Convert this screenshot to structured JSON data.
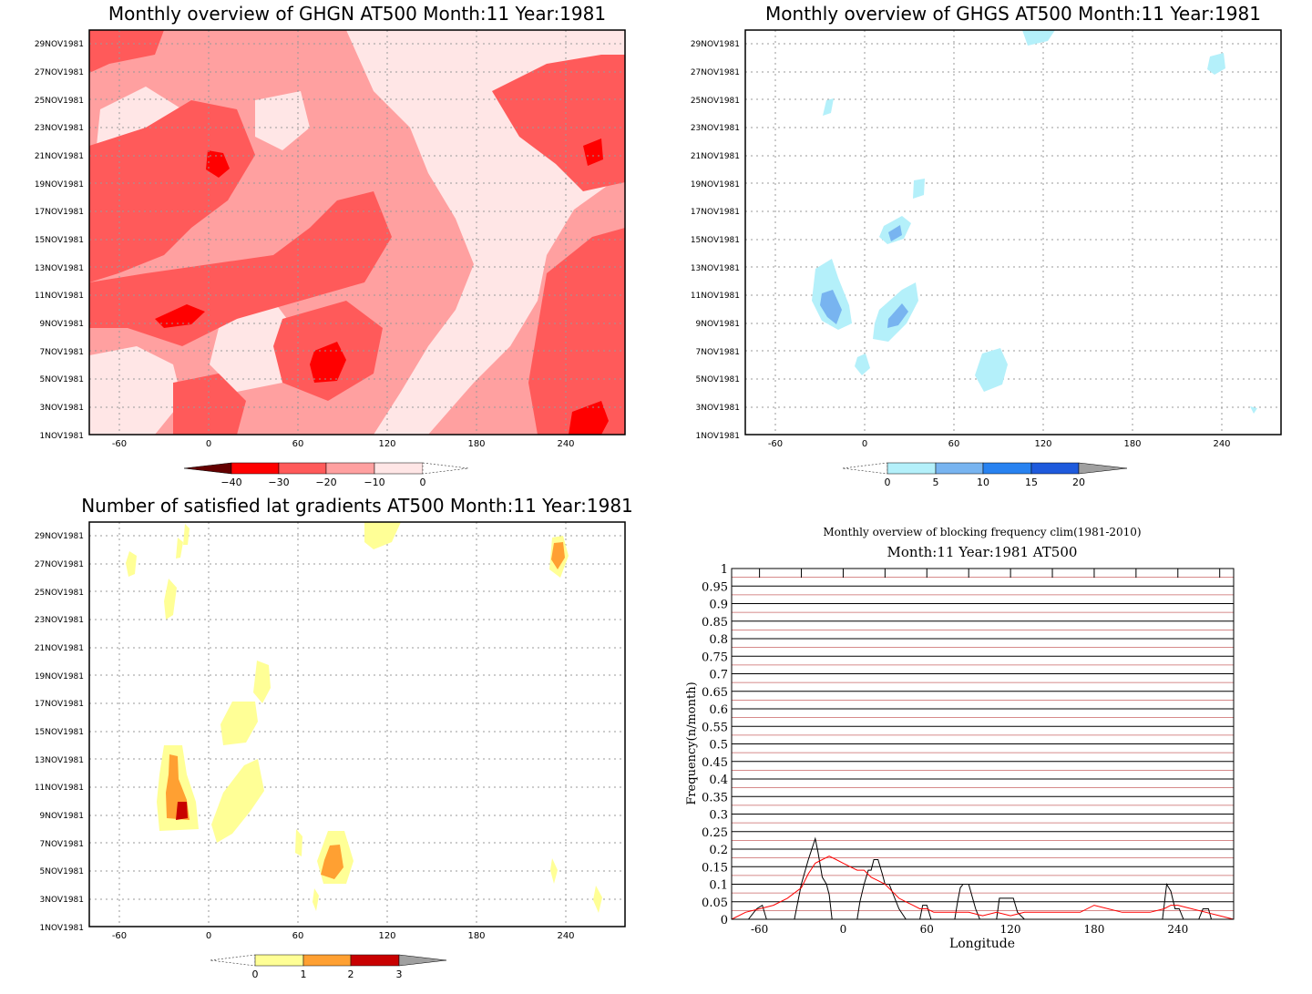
{
  "panels": {
    "ghgn": {
      "title": "Monthly overview of GHGN AT500 Month:11 Year:1981",
      "legend": {
        "labels": [
          "−40",
          "−30",
          "−20",
          "−10",
          "0"
        ],
        "colors": [
          "#b00000",
          "#ff0000",
          "#ff5a5a",
          "#ffa0a0",
          "#ffe6e6"
        ]
      }
    },
    "ghgs": {
      "title": "Monthly overview of GHGS AT500 Month:11 Year:1981",
      "legend": {
        "labels": [
          "0",
          "5",
          "10",
          "15",
          "20"
        ],
        "colors": [
          "#b4f0fa",
          "#78b4f0",
          "#2882f0",
          "#1e5adc",
          "#a0a0a0"
        ]
      }
    },
    "gradients": {
      "title": "Number of satisfied lat gradients AT500 Month:11 Year:1981",
      "legend": {
        "labels": [
          "0",
          "1",
          "2",
          "3"
        ],
        "colors": [
          "#ffff96",
          "#ffa032",
          "#c80000",
          "#a0a0a0"
        ]
      }
    },
    "blocking": {
      "title": "Monthly overview of blocking frequency clim(1981-2010)",
      "subtitle": "Month:11 Year:1981  AT500",
      "xlabel": "Longitude",
      "ylabel": "Frequency(n/month)"
    }
  },
  "date_ticks": [
    "1NOV1981",
    "3NOV1981",
    "5NOV1981",
    "7NOV1981",
    "9NOV1981",
    "11NOV1981",
    "13NOV1981",
    "15NOV1981",
    "17NOV1981",
    "19NOV1981",
    "21NOV1981",
    "23NOV1981",
    "25NOV1981",
    "27NOV1981",
    "29NOV1981"
  ],
  "lon_ticks": [
    "-60",
    "0",
    "60",
    "120",
    "180",
    "240"
  ],
  "freq_ticks": [
    "0",
    "0.05",
    "0.1",
    "0.15",
    "0.2",
    "0.25",
    "0.3",
    "0.35",
    "0.4",
    "0.45",
    "0.5",
    "0.55",
    "0.6",
    "0.65",
    "0.7",
    "0.75",
    "0.8",
    "0.85",
    "0.9",
    "0.95",
    "1"
  ],
  "chart_data": [
    {
      "type": "heatmap",
      "title": "Monthly overview of GHGN AT500 Month:11 Year:1981",
      "x_range": [
        -80,
        280
      ],
      "y_range": [
        "1NOV1981",
        "30NOV1981"
      ],
      "color_levels": [
        -40,
        -30,
        -20,
        -10,
        0
      ],
      "grid": true
    },
    {
      "type": "heatmap",
      "title": "Monthly overview of GHGS AT500 Month:11 Year:1981",
      "x_range": [
        -80,
        280
      ],
      "y_range": [
        "1NOV1981",
        "30NOV1981"
      ],
      "color_levels": [
        0,
        5,
        10,
        15,
        20
      ],
      "grid": true
    },
    {
      "type": "heatmap",
      "title": "Number of satisfied lat gradients AT500 Month:11 Year:1981",
      "x_range": [
        -80,
        280
      ],
      "y_range": [
        "1NOV1981",
        "30NOV1981"
      ],
      "color_levels": [
        0,
        1,
        2,
        3
      ],
      "grid": true
    },
    {
      "type": "line",
      "title": "Monthly overview of blocking frequency clim(1981-2010)",
      "subtitle": "Month:11 Year:1981  AT500",
      "xlabel": "Longitude",
      "ylabel": "Frequency(n/month)",
      "xlim": [
        -80,
        280
      ],
      "ylim": [
        0,
        1
      ],
      "series": [
        {
          "color": "#000000",
          "x": [
            -80,
            -68,
            -62,
            -58,
            -55,
            -35,
            -30,
            -25,
            -20,
            -18,
            -15,
            -12,
            -10,
            -8,
            -3,
            0,
            5,
            10,
            12,
            15,
            18,
            20,
            22,
            25,
            28,
            30,
            33,
            36,
            40,
            45,
            50,
            55,
            57,
            60,
            63,
            65,
            68,
            70,
            80,
            82,
            84,
            86,
            90,
            95,
            98,
            100,
            110,
            112,
            115,
            122,
            125,
            130,
            135,
            140,
            150,
            160,
            170,
            180,
            190,
            200,
            210,
            220,
            229,
            232,
            235,
            238,
            241,
            244,
            250,
            255,
            258,
            262,
            264,
            270,
            280
          ],
          "y": [
            0,
            0,
            0.03,
            0.04,
            0,
            0,
            0.1,
            0.17,
            0.23,
            0.19,
            0.12,
            0.1,
            0.07,
            0,
            0,
            0,
            0,
            0,
            0.05,
            0.1,
            0.14,
            0.14,
            0.17,
            0.17,
            0.13,
            0.1,
            0.1,
            0.07,
            0.03,
            0,
            0,
            0,
            0.04,
            0.04,
            0,
            0,
            0,
            0,
            0,
            0.05,
            0.09,
            0.1,
            0.1,
            0.03,
            0,
            0,
            0,
            0.06,
            0.06,
            0.06,
            0.02,
            0,
            0,
            0,
            0,
            0,
            0,
            0,
            0,
            0,
            0,
            0,
            0,
            0.1,
            0.08,
            0.03,
            0.03,
            0,
            0,
            0,
            0.03,
            0.03,
            0,
            0,
            0
          ]
        },
        {
          "color": "#ff0000",
          "x": [
            -80,
            -70,
            -60,
            -50,
            -40,
            -30,
            -25,
            -20,
            -15,
            -10,
            -5,
            0,
            5,
            10,
            15,
            20,
            25,
            30,
            35,
            40,
            45,
            50,
            55,
            60,
            65,
            70,
            80,
            90,
            100,
            110,
            120,
            130,
            140,
            150,
            160,
            170,
            180,
            190,
            200,
            210,
            220,
            230,
            235,
            240,
            250,
            260,
            270,
            280
          ],
          "y": [
            0,
            0.02,
            0.03,
            0.04,
            0.06,
            0.09,
            0.13,
            0.16,
            0.17,
            0.18,
            0.17,
            0.16,
            0.15,
            0.14,
            0.14,
            0.12,
            0.11,
            0.1,
            0.08,
            0.06,
            0.05,
            0.04,
            0.03,
            0.03,
            0.02,
            0.02,
            0.02,
            0.02,
            0.01,
            0.02,
            0.01,
            0.02,
            0.02,
            0.02,
            0.02,
            0.02,
            0.04,
            0.03,
            0.02,
            0.02,
            0.02,
            0.03,
            0.04,
            0.04,
            0.03,
            0.02,
            0.01,
            0
          ]
        }
      ]
    }
  ]
}
